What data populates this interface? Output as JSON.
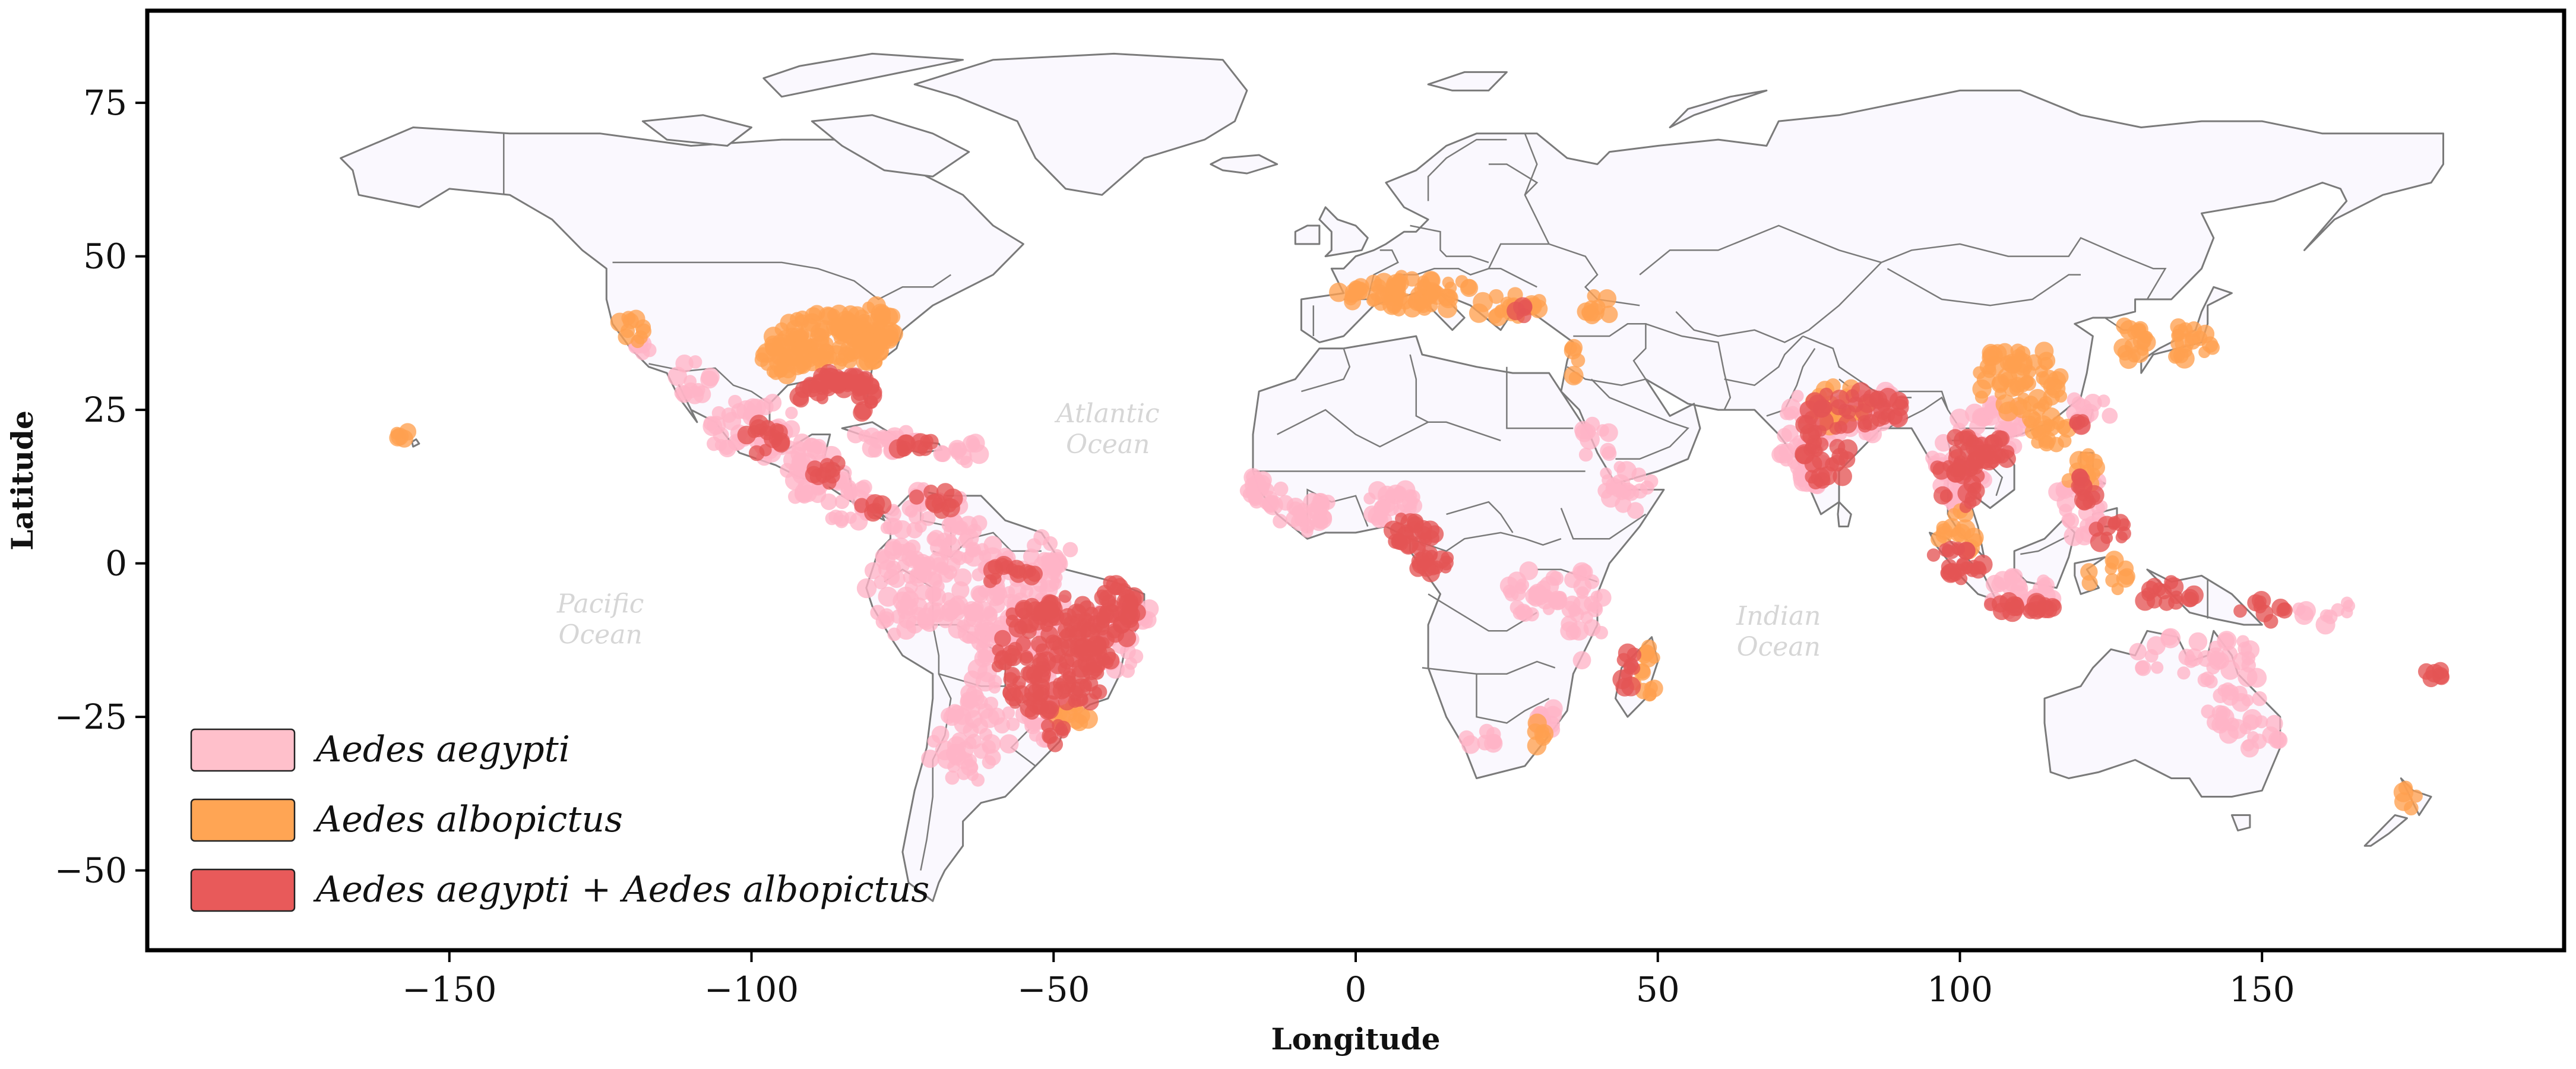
{
  "map": {
    "xlabel": "Longitude",
    "ylabel": "Latitude",
    "xlim": [
      -200,
      200
    ],
    "ylim": [
      -63,
      90
    ],
    "xticks": [
      -150,
      -100,
      -50,
      0,
      50,
      100,
      150
    ],
    "yticks": [
      75,
      50,
      25,
      0,
      -25,
      -50
    ],
    "tick_labels_x": [
      "−150",
      "−100",
      "−50",
      "0",
      "50",
      "100",
      "150"
    ],
    "tick_labels_y": [
      "75",
      "50",
      "25",
      "0",
      "−25",
      "−50"
    ],
    "land_color": "#faf8fe",
    "border_color": "#7a7a7a"
  },
  "ocean_labels": [
    {
      "lines": [
        "Atlantic",
        "Ocean"
      ],
      "lon": -41,
      "lat": 23
    },
    {
      "lines": [
        "Pacific",
        "Ocean"
      ],
      "lon": -125,
      "lat": -8
    },
    {
      "lines": [
        "Indian",
        "Ocean"
      ],
      "lon": 70,
      "lat": -10
    }
  ],
  "legend": {
    "position": "lower-left",
    "items": [
      {
        "label": "Aedes aegypti",
        "color": "#ffc0cb"
      },
      {
        "label": "Aedes albopictus",
        "color": "#ffa554"
      },
      {
        "label": "Aedes aegypti + Aedes albopictus",
        "color": "#e85a5a"
      }
    ]
  },
  "occurrence_regions": [
    {
      "species": "aegypti",
      "color": "#ffb3c6",
      "areas": [
        [
          -100,
          22,
          8,
          5,
          45
        ],
        [
          -90,
          15,
          6,
          5,
          35
        ],
        [
          -84,
          10,
          4,
          4,
          22
        ],
        [
          -78,
          20,
          6,
          2,
          18
        ],
        [
          -70,
          5,
          8,
          8,
          60
        ],
        [
          -75,
          -5,
          6,
          8,
          45
        ],
        [
          -60,
          -5,
          12,
          8,
          80
        ],
        [
          -55,
          -20,
          10,
          10,
          70
        ],
        [
          -65,
          -30,
          6,
          6,
          35
        ],
        [
          -58,
          -10,
          10,
          6,
          50
        ],
        [
          -110,
          30,
          4,
          3,
          12
        ],
        [
          -118,
          34,
          2,
          2,
          6
        ],
        [
          -15,
          12,
          3,
          3,
          20
        ],
        [
          -8,
          8,
          5,
          3,
          25
        ],
        [
          5,
          10,
          5,
          3,
          25
        ],
        [
          30,
          -5,
          5,
          4,
          30
        ],
        [
          38,
          -8,
          3,
          8,
          25
        ],
        [
          32,
          -25,
          2,
          3,
          10
        ],
        [
          20,
          -28,
          4,
          2,
          8
        ],
        [
          -40,
          -12,
          6,
          6,
          30
        ],
        [
          75,
          20,
          5,
          8,
          55
        ],
        [
          85,
          25,
          5,
          4,
          30
        ],
        [
          100,
          15,
          5,
          6,
          40
        ],
        [
          105,
          22,
          6,
          4,
          30
        ],
        [
          110,
          -5,
          6,
          3,
          30
        ],
        [
          120,
          10,
          4,
          6,
          25
        ],
        [
          145,
          -20,
          5,
          8,
          40
        ],
        [
          150,
          -28,
          3,
          3,
          12
        ],
        [
          135,
          -15,
          8,
          3,
          15
        ],
        [
          122,
          25,
          4,
          3,
          12
        ],
        [
          45,
          12,
          5,
          4,
          20
        ],
        [
          40,
          20,
          3,
          3,
          10
        ],
        [
          -65,
          18,
          4,
          2,
          12
        ],
        [
          -50,
          2,
          4,
          3,
          15
        ],
        [
          -37,
          -8,
          3,
          4,
          15
        ],
        [
          160,
          -8,
          5,
          3,
          10
        ]
      ]
    },
    {
      "species": "albopictus",
      "color": "#ffa04f",
      "areas": [
        [
          -87,
          36,
          10,
          5,
          110
        ],
        [
          -80,
          38,
          4,
          4,
          40
        ],
        [
          -95,
          33,
          4,
          3,
          25
        ],
        [
          -120,
          38,
          3,
          2,
          10
        ],
        [
          -157,
          21,
          2,
          1,
          5
        ],
        [
          -47,
          -25,
          3,
          2,
          12
        ],
        [
          10,
          44,
          10,
          3,
          60
        ],
        [
          0,
          44,
          3,
          2,
          12
        ],
        [
          25,
          42,
          6,
          2,
          20
        ],
        [
          40,
          42,
          3,
          2,
          10
        ],
        [
          36,
          33,
          1,
          3,
          6
        ],
        [
          110,
          30,
          8,
          6,
          60
        ],
        [
          128,
          36,
          3,
          3,
          18
        ],
        [
          138,
          36,
          4,
          3,
          20
        ],
        [
          115,
          22,
          4,
          3,
          20
        ],
        [
          120,
          15,
          3,
          3,
          12
        ],
        [
          48,
          -18,
          2,
          5,
          14
        ],
        [
          30,
          -28,
          2,
          2,
          6
        ],
        [
          80,
          25,
          5,
          4,
          20
        ],
        [
          175,
          -38,
          2,
          2,
          5
        ],
        [
          100,
          5,
          4,
          4,
          15
        ],
        [
          125,
          -2,
          4,
          3,
          10
        ]
      ]
    },
    {
      "species": "both",
      "color": "#e45555",
      "areas": [
        [
          -86,
          30,
          5,
          2,
          30
        ],
        [
          -81,
          27,
          1.5,
          3,
          14
        ],
        [
          -90,
          28,
          3,
          2,
          10
        ],
        [
          -98,
          20,
          3,
          3,
          15
        ],
        [
          -88,
          15,
          3,
          2,
          10
        ],
        [
          -72,
          19,
          4,
          1,
          10
        ],
        [
          -80,
          9,
          2,
          1,
          5
        ],
        [
          -70,
          10,
          4,
          2,
          10
        ],
        [
          -50,
          -15,
          10,
          10,
          160
        ],
        [
          -40,
          -8,
          4,
          5,
          40
        ],
        [
          -57,
          -2,
          4,
          2,
          15
        ],
        [
          -50,
          -28,
          2,
          2,
          8
        ],
        [
          10,
          5,
          4,
          3,
          25
        ],
        [
          13,
          0,
          3,
          3,
          15
        ],
        [
          78,
          20,
          4,
          8,
          40
        ],
        [
          85,
          25,
          6,
          3,
          25
        ],
        [
          100,
          15,
          4,
          6,
          40
        ],
        [
          105,
          18,
          3,
          3,
          15
        ],
        [
          100,
          0,
          5,
          3,
          25
        ],
        [
          110,
          -7,
          6,
          1,
          20
        ],
        [
          121,
          12,
          2,
          3,
          12
        ],
        [
          125,
          5,
          3,
          2,
          10
        ],
        [
          120,
          23,
          1,
          1,
          4
        ],
        [
          45,
          -18,
          2,
          4,
          10
        ],
        [
          135,
          -5,
          6,
          2,
          15
        ],
        [
          150,
          -8,
          4,
          2,
          10
        ],
        [
          178,
          -18,
          2,
          1,
          6
        ],
        [
          28,
          41,
          2,
          1,
          4
        ]
      ]
    }
  ]
}
